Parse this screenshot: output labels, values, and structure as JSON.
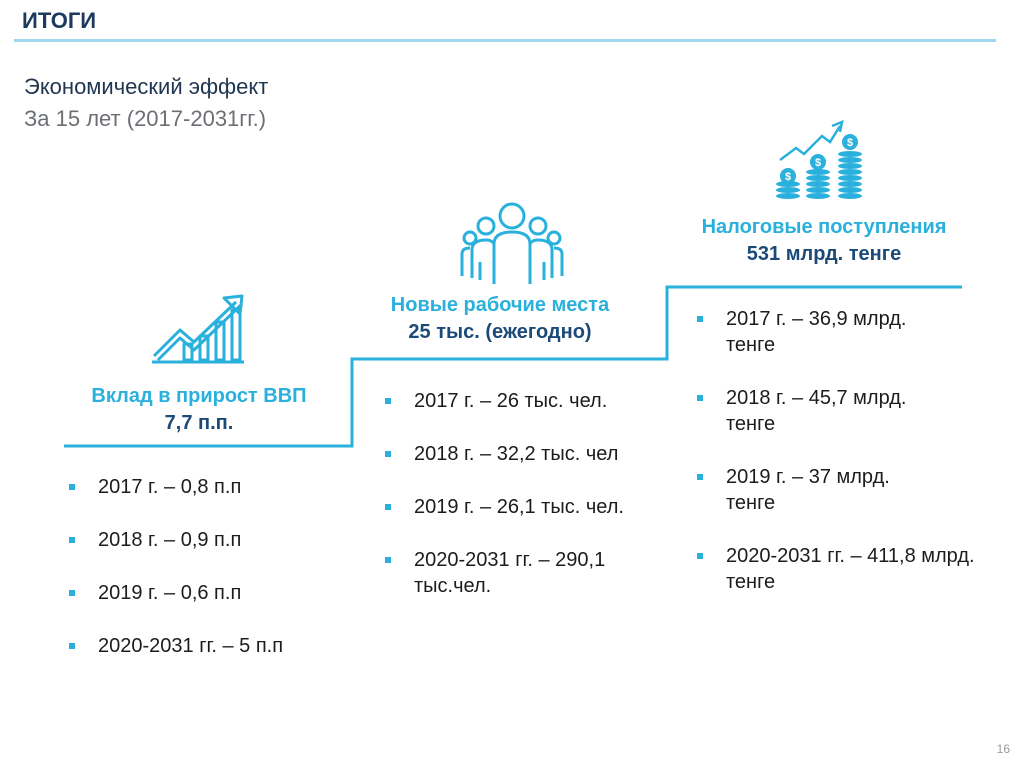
{
  "header": {
    "title": "ИТОГИ"
  },
  "heading": "Экономический эффект",
  "subheading": "За 15 лет (2017-2031гг.)",
  "columns": [
    {
      "icon": "growth-chart-icon",
      "title": "Вклад в прирост ВВП",
      "value": "7,7 п.п.",
      "items": [
        "2017 г. – 0,8 п.п",
        "2018 г. – 0,9 п.п",
        "2019 г. – 0,6 п.п",
        "2020-2031 гг. – 5 п.п"
      ]
    },
    {
      "icon": "people-group-icon",
      "title": "Новые рабочие места",
      "value": "25 тыс. (ежегодно)",
      "items": [
        "2017 г. – 26 тыс. чел.",
        "2018 г. – 32,2 тыс. чел",
        "2019 г. – 26,1 тыс. чел.",
        "2020-2031 гг. – 290,1 тыс.чел."
      ]
    },
    {
      "icon": "coins-growth-icon",
      "title": "Налоговые поступления",
      "value": "531 млрд. тенге",
      "items": [
        "2017 г. – 36,9 млрд. тенге",
        "2018 г. – 45,7 млрд. тенге",
        "2019 г. – 37 млрд. тенге",
        "2020-2031 гг. – 411,8 млрд. тенге"
      ]
    }
  ],
  "page_number": "16",
  "colors": {
    "accent": "#2ab0dc",
    "dark_blue": "#1b4a78",
    "rule": "#9fd8ee"
  }
}
